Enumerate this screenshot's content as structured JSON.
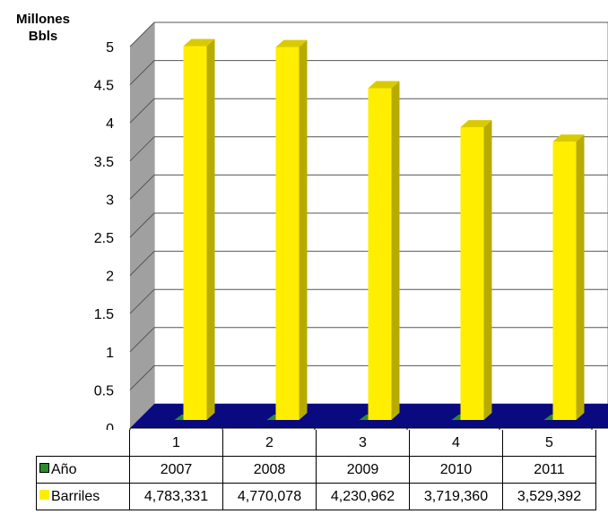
{
  "chart_data": {
    "type": "bar",
    "ylabel_lines": [
      "Millones",
      "Bbls"
    ],
    "categories": [
      "1",
      "2",
      "3",
      "4",
      "5"
    ],
    "ylim": [
      0,
      5
    ],
    "yticks": [
      "0",
      "0.5",
      "1",
      "1.5",
      "2",
      "2.5",
      "3",
      "3.5",
      "4",
      "4.5",
      "5"
    ],
    "grid": true,
    "series": [
      {
        "name": "Año",
        "color": "#2e8b2e",
        "values": [
          2007,
          2008,
          2009,
          2010,
          2011
        ],
        "labels": [
          "2007",
          "2008",
          "2009",
          "2010",
          "2011"
        ],
        "plotted_value": [
          0,
          0,
          0,
          0,
          0
        ]
      },
      {
        "name": "Barriles",
        "color": "#ffee00",
        "values": [
          4783331,
          4770078,
          4230962,
          3719360,
          3529392
        ],
        "labels": [
          "4,783,331",
          "4,770,078",
          "4,230,962",
          "3,719,360",
          "3,529,392"
        ]
      }
    ],
    "floor_color": "#0a0a80",
    "wall_color": "#a0a0a0"
  }
}
